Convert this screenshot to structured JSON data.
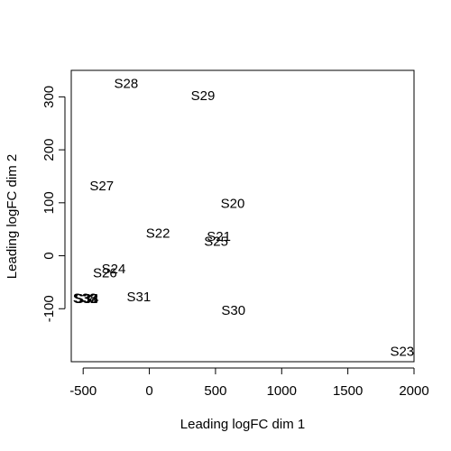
{
  "chart_data": {
    "type": "scatter",
    "title": "",
    "xlabel": "Leading logFC dim 1",
    "ylabel": "Leading logFC dim 2",
    "xlim": [
      -590,
      2000
    ],
    "ylim": [
      -200,
      350
    ],
    "xticks": [
      -500,
      0,
      500,
      1000,
      1500,
      2000
    ],
    "yticks": [
      -100,
      0,
      100,
      200,
      300
    ],
    "grid": false,
    "points": [
      {
        "label": "S28",
        "x": -175,
        "y": 325
      },
      {
        "label": "S29",
        "x": 405,
        "y": 302
      },
      {
        "label": "S27",
        "x": -360,
        "y": 132
      },
      {
        "label": "S20",
        "x": 630,
        "y": 99
      },
      {
        "label": "S22",
        "x": 65,
        "y": 43
      },
      {
        "label": "S21",
        "x": 525,
        "y": 37
      },
      {
        "label": "S25",
        "x": 505,
        "y": 27
      },
      {
        "label": "S24",
        "x": -270,
        "y": -25
      },
      {
        "label": "S26",
        "x": -335,
        "y": -32
      },
      {
        "label": "S31",
        "x": -80,
        "y": -77
      },
      {
        "label": "S38",
        "x": -487,
        "y": -80
      },
      {
        "label": "S32",
        "x": -482,
        "y": -81
      },
      {
        "label": "S33",
        "x": -477,
        "y": -81
      },
      {
        "label": "S34",
        "x": -472,
        "y": -81
      },
      {
        "label": "S30",
        "x": 635,
        "y": -103
      },
      {
        "label": "S23",
        "x": 1910,
        "y": -180
      }
    ]
  }
}
